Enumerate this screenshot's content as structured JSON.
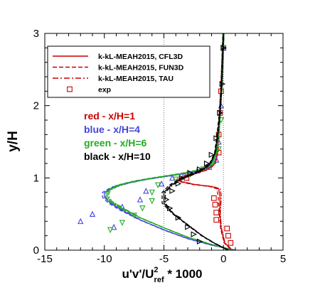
{
  "chart_data": {
    "type": "line",
    "xlabel": "u'v'/U",
    "xlabel_sub": "ref",
    "xlabel_sup": "2",
    "xlabel_suffix": " * 1000",
    "ylabel": "y/H",
    "xlim": [
      -15,
      5
    ],
    "ylim": [
      0,
      3
    ],
    "x_ticks": [
      -15,
      -10,
      -5,
      0,
      5
    ],
    "y_ticks": [
      0,
      1,
      2,
      3
    ],
    "grid": false,
    "legend_position": "upper-left",
    "legend": [
      {
        "label": "k-kL-MEAH2015, CFL3D",
        "style": "solid",
        "color": "#cc0000"
      },
      {
        "label": "k-kL-MEAH2015, FUN3D",
        "style": "dashed",
        "color": "#cc0000"
      },
      {
        "label": "k-kL-MEAH2015, TAU",
        "style": "dashdot",
        "color": "#cc0000"
      },
      {
        "label": "exp",
        "style": "marker-square",
        "color": "#cc0000"
      }
    ],
    "annotations": [
      {
        "text": "red - x/H=1",
        "color": "#cc0000"
      },
      {
        "text": "blue - x/H=4",
        "color": "#4444dd"
      },
      {
        "text": "green - x/H=6",
        "color": "#22aa22"
      },
      {
        "text": "black - x/H=10",
        "color": "#000000"
      }
    ],
    "series": [
      {
        "station": "x/H=1",
        "color": "#cc0000",
        "marker": "square",
        "cfd": [
          [
            0.6,
            0.02
          ],
          [
            0.1,
            0.1
          ],
          [
            -0.2,
            0.3
          ],
          [
            -0.3,
            0.5
          ],
          [
            -0.3,
            0.75
          ],
          [
            -0.4,
            0.85
          ],
          [
            -1.0,
            0.88
          ],
          [
            -2.5,
            0.91
          ],
          [
            -3.6,
            0.95
          ],
          [
            -3.8,
            0.98
          ],
          [
            -3.2,
            1.03
          ],
          [
            -2.2,
            1.07
          ],
          [
            -1.3,
            1.12
          ],
          [
            -0.7,
            1.2
          ],
          [
            -0.5,
            1.35
          ],
          [
            -0.4,
            1.6
          ],
          [
            -0.3,
            1.9
          ],
          [
            -0.2,
            2.2
          ],
          [
            -0.1,
            2.6
          ],
          [
            0,
            3.0
          ]
        ],
        "exp": [
          [
            0.6,
            0.1
          ],
          [
            0.4,
            0.2
          ],
          [
            0.3,
            0.3
          ],
          [
            -0.6,
            0.42
          ],
          [
            -0.6,
            0.52
          ],
          [
            -0.7,
            0.63
          ],
          [
            -0.8,
            0.72
          ],
          [
            -3.1,
            1.0
          ],
          [
            -0.4,
            1.35
          ],
          [
            -0.4,
            1.6
          ],
          [
            -0.3,
            1.9
          ],
          [
            -0.2,
            2.2
          ],
          [
            0,
            2.8
          ]
        ]
      },
      {
        "station": "x/H=4",
        "color": "#4444dd",
        "marker": "triangle-up",
        "cfd": [
          [
            1.0,
            0.0
          ],
          [
            -1.0,
            0.07
          ],
          [
            -3.0,
            0.16
          ],
          [
            -5.0,
            0.28
          ],
          [
            -7.0,
            0.42
          ],
          [
            -8.5,
            0.55
          ],
          [
            -9.5,
            0.65
          ],
          [
            -10.0,
            0.73
          ],
          [
            -10.0,
            0.8
          ],
          [
            -9.3,
            0.87
          ],
          [
            -8.0,
            0.93
          ],
          [
            -6.5,
            0.98
          ],
          [
            -4.5,
            1.03
          ],
          [
            -2.5,
            1.08
          ],
          [
            -1.3,
            1.15
          ],
          [
            -0.7,
            1.3
          ],
          [
            -0.5,
            1.5
          ],
          [
            -0.3,
            1.9
          ],
          [
            -0.15,
            2.3
          ],
          [
            0,
            3.0
          ]
        ],
        "exp": [
          [
            -12.0,
            0.4
          ],
          [
            -11.0,
            0.5
          ],
          [
            -9.2,
            0.32
          ],
          [
            -8.5,
            0.6
          ],
          [
            -7.0,
            0.7
          ],
          [
            -6.5,
            0.82
          ],
          [
            -5.2,
            0.92
          ],
          [
            -4.3,
            1.0
          ],
          [
            -3.3,
            1.04
          ],
          [
            -2.2,
            1.1
          ],
          [
            -1.2,
            1.15
          ],
          [
            -0.6,
            1.25
          ],
          [
            -0.4,
            1.5
          ],
          [
            -0.2,
            2.0
          ],
          [
            0,
            2.8
          ]
        ]
      },
      {
        "station": "x/H=6",
        "color": "#22aa22",
        "marker": "triangle-down",
        "cfd": [
          [
            0.8,
            0.0
          ],
          [
            -1.0,
            0.08
          ],
          [
            -3.0,
            0.18
          ],
          [
            -5.0,
            0.31
          ],
          [
            -7.0,
            0.45
          ],
          [
            -8.5,
            0.58
          ],
          [
            -9.5,
            0.68
          ],
          [
            -9.8,
            0.76
          ],
          [
            -9.6,
            0.83
          ],
          [
            -8.8,
            0.9
          ],
          [
            -7.3,
            0.96
          ],
          [
            -5.5,
            1.01
          ],
          [
            -3.5,
            1.06
          ],
          [
            -2.0,
            1.11
          ],
          [
            -1.0,
            1.18
          ],
          [
            -0.6,
            1.35
          ],
          [
            -0.4,
            1.6
          ],
          [
            -0.25,
            2.0
          ],
          [
            -0.1,
            2.4
          ],
          [
            0,
            3.0
          ]
        ],
        "exp": [
          [
            -9.5,
            0.28
          ],
          [
            -8.5,
            0.38
          ],
          [
            -7.5,
            0.48
          ],
          [
            -6.8,
            0.58
          ],
          [
            -6.0,
            0.68
          ],
          [
            -6.0,
            0.8
          ],
          [
            -5.5,
            0.9
          ],
          [
            -4.0,
            0.98
          ],
          [
            -2.8,
            1.05
          ],
          [
            -1.7,
            1.12
          ],
          [
            -0.9,
            1.2
          ],
          [
            -0.4,
            1.4
          ],
          [
            -0.2,
            1.8
          ],
          [
            0,
            2.8
          ]
        ]
      },
      {
        "station": "x/H=10",
        "color": "#000000",
        "marker": "triangle-right",
        "cfd": [
          [
            0.4,
            0.0
          ],
          [
            -0.8,
            0.1
          ],
          [
            -1.8,
            0.2
          ],
          [
            -3.0,
            0.35
          ],
          [
            -4.2,
            0.5
          ],
          [
            -5.0,
            0.65
          ],
          [
            -5.0,
            0.8
          ],
          [
            -4.4,
            0.9
          ],
          [
            -3.6,
            0.98
          ],
          [
            -2.6,
            1.05
          ],
          [
            -1.7,
            1.12
          ],
          [
            -1.1,
            1.2
          ],
          [
            -0.7,
            1.35
          ],
          [
            -0.5,
            1.6
          ],
          [
            -0.3,
            1.9
          ],
          [
            -0.15,
            2.3
          ],
          [
            0,
            3.0
          ]
        ],
        "exp": [
          [
            -2.0,
            0.12
          ],
          [
            -2.5,
            0.22
          ],
          [
            -3.0,
            0.32
          ],
          [
            -3.8,
            0.45
          ],
          [
            -4.5,
            0.58
          ],
          [
            -4.8,
            0.7
          ],
          [
            -4.3,
            0.82
          ],
          [
            -3.8,
            0.92
          ],
          [
            -3.5,
            1.0
          ],
          [
            -2.8,
            1.07
          ],
          [
            -2.0,
            1.12
          ],
          [
            -1.4,
            1.2
          ],
          [
            -1.0,
            1.32
          ],
          [
            -0.6,
            1.55
          ],
          [
            -0.3,
            1.9
          ],
          [
            -0.1,
            2.3
          ],
          [
            0,
            2.8
          ]
        ]
      }
    ]
  }
}
